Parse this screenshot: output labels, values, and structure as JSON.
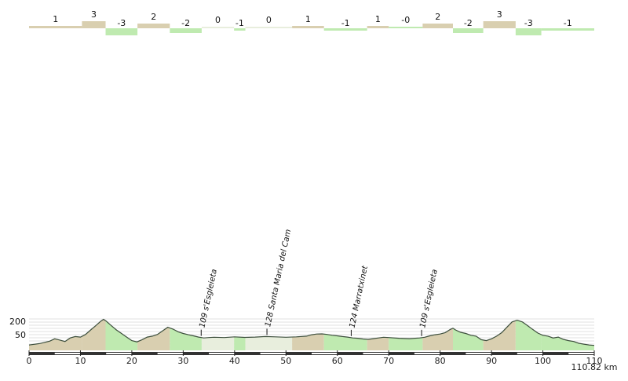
{
  "chart_data": {
    "type": "area",
    "x_unit": "km",
    "y_unit": "m",
    "total_distance_label": "110.82 km",
    "total_distance_km": 110.82,
    "xlim": [
      0,
      110.82
    ],
    "ylim": [
      0,
      260
    ],
    "x_ticks": [
      0,
      10,
      20,
      30,
      40,
      50,
      60,
      70,
      80,
      90,
      100,
      110
    ],
    "y_ticks": [
      50,
      200
    ],
    "grid": true,
    "colors": {
      "up": "#d9cfb0",
      "down": "#bfeab0",
      "flat": "#e8eedd",
      "line": "#3d4f3d"
    },
    "gradient_segments": [
      {
        "from_km": 0,
        "to_km": 10.3,
        "grade": "1"
      },
      {
        "from_km": 10.3,
        "to_km": 14.9,
        "grade": "3"
      },
      {
        "from_km": 14.9,
        "to_km": 21.1,
        "grade": "-3"
      },
      {
        "from_km": 21.1,
        "to_km": 27.4,
        "grade": "2"
      },
      {
        "from_km": 27.4,
        "to_km": 33.6,
        "grade": "-2"
      },
      {
        "from_km": 33.6,
        "to_km": 39.9,
        "grade": "0"
      },
      {
        "from_km": 39.9,
        "to_km": 42.1,
        "grade": "-1"
      },
      {
        "from_km": 42.1,
        "to_km": 51.2,
        "grade": "0"
      },
      {
        "from_km": 51.2,
        "to_km": 57.4,
        "grade": "1"
      },
      {
        "from_km": 57.4,
        "to_km": 65.8,
        "grade": "-1"
      },
      {
        "from_km": 65.8,
        "to_km": 70.0,
        "grade": "1"
      },
      {
        "from_km": 70.0,
        "to_km": 76.6,
        "grade": "-0"
      },
      {
        "from_km": 76.6,
        "to_km": 82.5,
        "grade": "2"
      },
      {
        "from_km": 82.5,
        "to_km": 88.4,
        "grade": "-2"
      },
      {
        "from_km": 88.4,
        "to_km": 94.7,
        "grade": "3"
      },
      {
        "from_km": 94.7,
        "to_km": 99.7,
        "grade": "-3"
      },
      {
        "from_km": 99.7,
        "to_km": 110.82,
        "grade": "-1"
      }
    ],
    "elevation_profile": [
      [
        0,
        30
      ],
      [
        2,
        38
      ],
      [
        4,
        52
      ],
      [
        5,
        65
      ],
      [
        6,
        58
      ],
      [
        7,
        50
      ],
      [
        8,
        70
      ],
      [
        9,
        78
      ],
      [
        10,
        75
      ],
      [
        11,
        90
      ],
      [
        12,
        115
      ],
      [
        13,
        140
      ],
      [
        14,
        165
      ],
      [
        14.5,
        175
      ],
      [
        15,
        165
      ],
      [
        16,
        140
      ],
      [
        17,
        115
      ],
      [
        18,
        95
      ],
      [
        19,
        75
      ],
      [
        20,
        55
      ],
      [
        21,
        48
      ],
      [
        22,
        60
      ],
      [
        23,
        75
      ],
      [
        24,
        80
      ],
      [
        25,
        90
      ],
      [
        26,
        110
      ],
      [
        27,
        130
      ],
      [
        28,
        120
      ],
      [
        29,
        105
      ],
      [
        30,
        95
      ],
      [
        31,
        88
      ],
      [
        32,
        82
      ],
      [
        33,
        75
      ],
      [
        34,
        70
      ],
      [
        35,
        72
      ],
      [
        36,
        74
      ],
      [
        38,
        72
      ],
      [
        40,
        76
      ],
      [
        42,
        73
      ],
      [
        44,
        75
      ],
      [
        46,
        78
      ],
      [
        48,
        76
      ],
      [
        50,
        74
      ],
      [
        52,
        76
      ],
      [
        54,
        80
      ],
      [
        55,
        88
      ],
      [
        56,
        92
      ],
      [
        57,
        93
      ],
      [
        58,
        90
      ],
      [
        59,
        85
      ],
      [
        60,
        82
      ],
      [
        61,
        78
      ],
      [
        62,
        75
      ],
      [
        63,
        70
      ],
      [
        64,
        68
      ],
      [
        65,
        64
      ],
      [
        66,
        62
      ],
      [
        67,
        66
      ],
      [
        68,
        70
      ],
      [
        69,
        74
      ],
      [
        70,
        72
      ],
      [
        72,
        68
      ],
      [
        74,
        66
      ],
      [
        76,
        70
      ],
      [
        77,
        74
      ],
      [
        78,
        82
      ],
      [
        79,
        88
      ],
      [
        80,
        92
      ],
      [
        81,
        100
      ],
      [
        82,
        118
      ],
      [
        82.5,
        125
      ],
      [
        83,
        115
      ],
      [
        84,
        102
      ],
      [
        85,
        95
      ],
      [
        86,
        85
      ],
      [
        87,
        80
      ],
      [
        88,
        60
      ],
      [
        89,
        55
      ],
      [
        90,
        65
      ],
      [
        91,
        80
      ],
      [
        92,
        100
      ],
      [
        93,
        130
      ],
      [
        94,
        160
      ],
      [
        95,
        170
      ],
      [
        96,
        160
      ],
      [
        97,
        140
      ],
      [
        98,
        118
      ],
      [
        99,
        98
      ],
      [
        100,
        85
      ],
      [
        101,
        80
      ],
      [
        102,
        70
      ],
      [
        103,
        75
      ],
      [
        104,
        62
      ],
      [
        105,
        55
      ],
      [
        106,
        50
      ],
      [
        107,
        40
      ],
      [
        108,
        35
      ],
      [
        109,
        30
      ],
      [
        110,
        28
      ],
      [
        110.82,
        28
      ]
    ],
    "waypoints": [
      {
        "km": 33.5,
        "label": "109 s'Esgleieta"
      },
      {
        "km": 46.3,
        "label": "128 Santa Maria del Cam"
      },
      {
        "km": 62.7,
        "label": "124 Marratxinet"
      },
      {
        "km": 76.4,
        "label": "109 s'Esgleieta"
      }
    ]
  }
}
